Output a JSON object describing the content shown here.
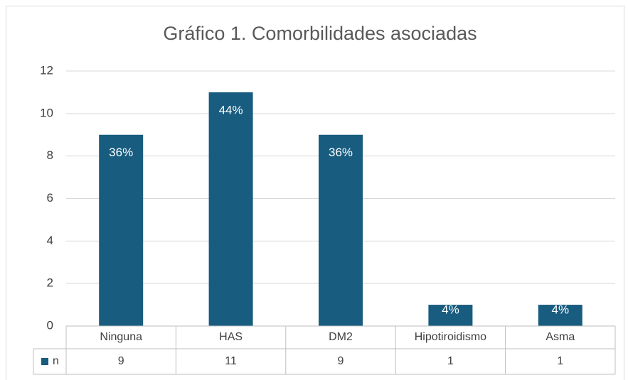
{
  "chart_data": {
    "type": "bar",
    "title": "Gráfico 1. Comorbilidades asociadas",
    "categories": [
      "Ninguna",
      "HAS",
      "DM2",
      "Hipotiroidismo",
      "Asma"
    ],
    "series": [
      {
        "name": "n",
        "color": "#185c7f",
        "values": [
          9,
          11,
          9,
          1,
          1
        ],
        "value_labels": [
          "36%",
          "44%",
          "36%",
          "4%",
          "4%"
        ]
      }
    ],
    "ylim": [
      0,
      12
    ],
    "yticks": [
      0,
      2,
      4,
      6,
      8,
      10,
      12
    ],
    "grid": true,
    "data_table": true
  }
}
